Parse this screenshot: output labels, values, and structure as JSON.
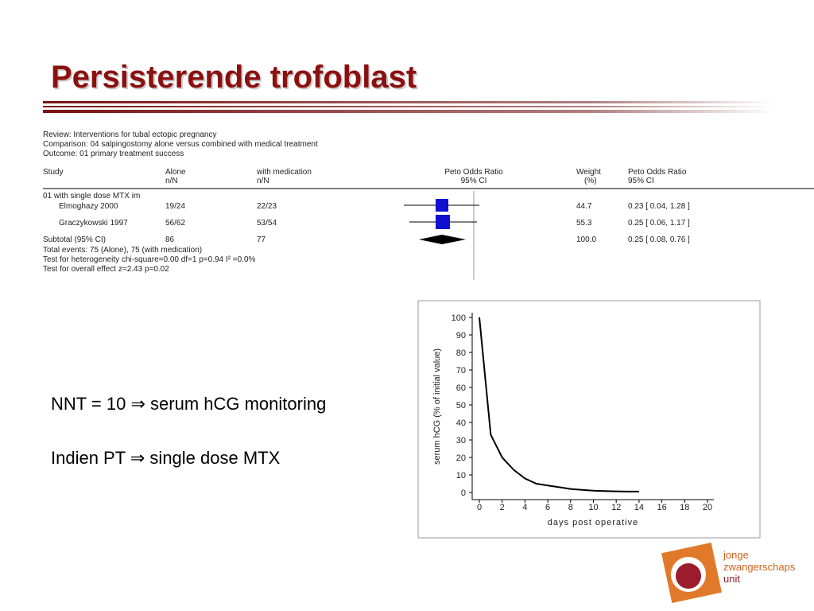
{
  "header": {
    "title": "Persisterende trofoblast"
  },
  "forest_plot": {
    "review": "Review:  Interventions for tubal ectopic pregnancy",
    "comparison": "Comparison:  04 salpingostomy alone versus combined with medical treatment",
    "outcome": "Outcome:  01 primary treatment success",
    "columns": [
      [
        "Study",
        ""
      ],
      [
        "Alone",
        "n/N"
      ],
      [
        "with medication",
        "n/N"
      ],
      [
        "Peto Odds Ratio",
        "95% CI"
      ],
      [
        "Weight",
        "(%)"
      ],
      [
        "Peto Odds Ratio",
        "95% CI"
      ]
    ],
    "group": "01 with single dose MTX im",
    "rows": [
      [
        "Elmoghazy 2000",
        "19/24",
        "22/23",
        "44.7",
        "0.23 [ 0.04, 1.28 ]"
      ],
      [
        "Graczykowski 1997",
        "56/62",
        "53/54",
        "55.3",
        "0.25 [ 0.06, 1.17 ]"
      ],
      [
        "Subtotal (95% CI)",
        "86",
        "77",
        "100.0",
        "0.25 [ 0.08, 0.76 ]"
      ]
    ],
    "notes": [
      "Total events: 75 (Alone), 75 (with medication)",
      "Test for heterogeneity chi-square=0.00 df=1 p=0.94 I² =0.0%",
      "Test for overall effect z=2.43  p=0.02"
    ]
  },
  "bullets": [
    "NNT = 10 ⇒ serum hCG monitoring",
    "Indien PT ⇒ single dose MTX"
  ],
  "logo": {
    "lines": [
      "jonge",
      "zwangerschaps",
      "unit"
    ]
  },
  "chart_data": {
    "type": "line",
    "x_label": "days post operative",
    "y_label": "serum hCG (% of initial value)",
    "x": [
      0,
      1,
      2,
      3,
      4,
      5,
      6,
      7,
      8,
      9,
      10,
      11,
      12,
      13,
      14
    ],
    "values": [
      100,
      33,
      20,
      13,
      8,
      5,
      4,
      3,
      2,
      1.5,
      1,
      0.8,
      0.6,
      0.5,
      0.5
    ],
    "color": "#000000",
    "xlim": [
      0,
      20
    ],
    "xticks": [
      0,
      2,
      4,
      6,
      8,
      10,
      12,
      14,
      16,
      18,
      20
    ],
    "ylim": [
      0,
      100
    ],
    "yticks": [
      0,
      10,
      20,
      30,
      40,
      50,
      60,
      70,
      80,
      90,
      100
    ]
  }
}
